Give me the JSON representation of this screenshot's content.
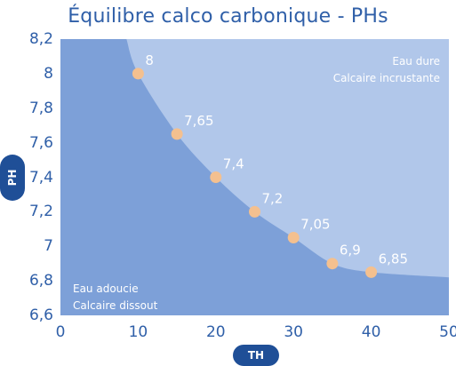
{
  "chart_data": {
    "type": "line",
    "title": "Équilibre calco carbonique - PHs",
    "xlabel": "TH",
    "ylabel": "PH",
    "xlim": [
      0,
      50
    ],
    "ylim": [
      6.6,
      8.2
    ],
    "x_ticks": [
      "0",
      "10",
      "20",
      "30",
      "40",
      "50"
    ],
    "y_ticks": [
      "8,2",
      "8",
      "7,8",
      "7,6",
      "7,4",
      "7,2",
      "7",
      "6,8",
      "6,6"
    ],
    "series": [
      {
        "points": [
          {
            "x": 10,
            "y": 8.0,
            "label": "8"
          },
          {
            "x": 15,
            "y": 7.65,
            "label": "7,65"
          },
          {
            "x": 20,
            "y": 7.4,
            "label": "7,4"
          },
          {
            "x": 25,
            "y": 7.2,
            "label": "7,2"
          },
          {
            "x": 30,
            "y": 7.05,
            "label": "7,05"
          },
          {
            "x": 35,
            "y": 6.9,
            "label": "6,9"
          },
          {
            "x": 40,
            "y": 6.85,
            "label": "6,85"
          }
        ]
      }
    ],
    "curve_extends_to": [
      {
        "x": 8.5,
        "y": 8.2
      },
      {
        "x": 50,
        "y": 6.82
      }
    ],
    "regions": {
      "upper": [
        "Eau dure",
        "Calcaire incrustante"
      ],
      "lower": [
        "Eau adoucie",
        "Calcaire dissout"
      ]
    },
    "colors": {
      "background": "#7da0d8",
      "upper_region": "#b1c7ea",
      "points": "#f4c08f",
      "title": "#2f5fa8",
      "axis_badge": "#1f4f97"
    },
    "grid": false
  }
}
